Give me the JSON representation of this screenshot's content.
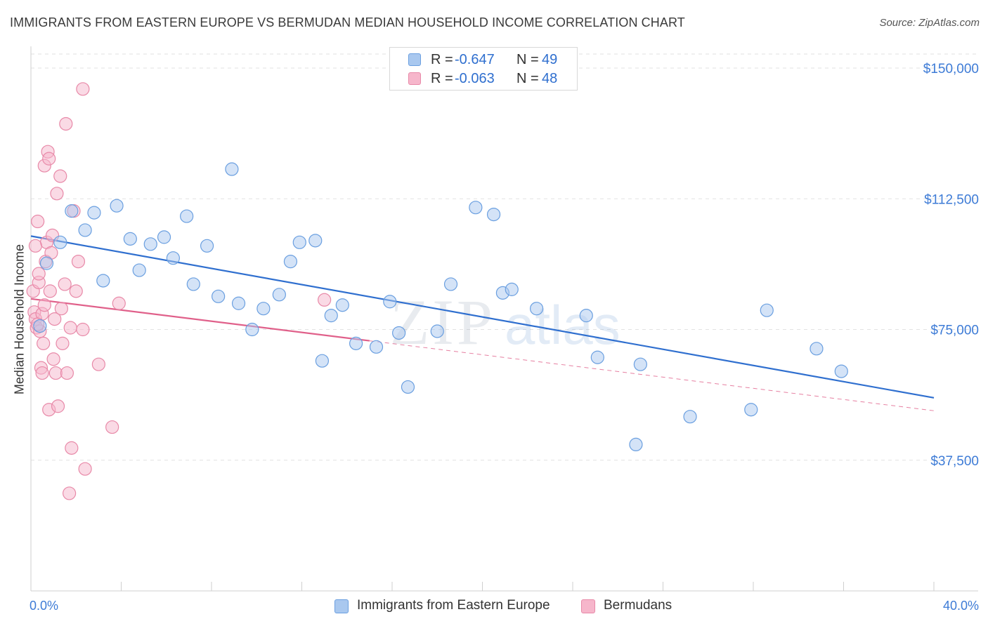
{
  "title": "IMMIGRANTS FROM EASTERN EUROPE VS BERMUDAN MEDIAN HOUSEHOLD INCOME CORRELATION CHART",
  "source": "Source: ZipAtlas.com",
  "watermark": {
    "zip": "ZIP",
    "atlas": "atlas"
  },
  "legend_top": {
    "rows": [
      {
        "r_label": "R =",
        "r_value": "-0.647",
        "n_label": "N =",
        "n_value": "49",
        "color": "#a9c8ef"
      },
      {
        "r_label": "R =",
        "r_value": "-0.063",
        "n_label": "N =",
        "n_value": "48",
        "color": "#f6b6cb"
      }
    ]
  },
  "legend_bottom": [
    {
      "label": "Immigrants from Eastern Europe",
      "color": "#a9c8ef"
    },
    {
      "label": "Bermudans",
      "color": "#f6b6cb"
    }
  ],
  "chart_data": {
    "type": "scatter",
    "title": "IMMIGRANTS FROM EASTERN EUROPE VS BERMUDAN MEDIAN HOUSEHOLD INCOME CORRELATION CHART",
    "xlabel": "",
    "ylabel": "Median Household Income",
    "xlim": [
      0,
      40
    ],
    "ylim": [
      0,
      157000
    ],
    "x_tick_labels": {
      "left": "0.0%",
      "right": "40.0%"
    },
    "y_ticks": [
      {
        "value": 37500,
        "label": "$37,500"
      },
      {
        "value": 75000,
        "label": "$75,000"
      },
      {
        "value": 112500,
        "label": "$112,500"
      },
      {
        "value": 150000,
        "label": "$150,000"
      }
    ],
    "grid": true,
    "legend_position": "top-center",
    "series": [
      {
        "name": "Immigrants from Eastern Europe",
        "color": "#a9c8ef",
        "stroke": "#6a9fe0",
        "trend": {
          "x": [
            0,
            40
          ],
          "y": [
            101800,
            55400
          ],
          "color": "#2f6fcf",
          "dashed_from_x": null
        },
        "points": [
          [
            0.4,
            76000
          ],
          [
            0.7,
            94000
          ],
          [
            1.3,
            100000
          ],
          [
            1.8,
            109000
          ],
          [
            2.4,
            103500
          ],
          [
            2.8,
            108500
          ],
          [
            3.2,
            89000
          ],
          [
            3.8,
            110500
          ],
          [
            4.4,
            101000
          ],
          [
            4.8,
            92000
          ],
          [
            5.3,
            99500
          ],
          [
            5.9,
            101500
          ],
          [
            6.3,
            95500
          ],
          [
            6.9,
            107500
          ],
          [
            7.2,
            88000
          ],
          [
            7.8,
            99000
          ],
          [
            8.3,
            84500
          ],
          [
            8.9,
            121000
          ],
          [
            9.2,
            82500
          ],
          [
            9.8,
            75000
          ],
          [
            10.3,
            81000
          ],
          [
            11.0,
            85000
          ],
          [
            11.5,
            94500
          ],
          [
            11.9,
            100000
          ],
          [
            12.6,
            100500
          ],
          [
            12.9,
            66000
          ],
          [
            13.3,
            79000
          ],
          [
            13.8,
            82000
          ],
          [
            14.4,
            71000
          ],
          [
            15.3,
            70000
          ],
          [
            15.9,
            83000
          ],
          [
            16.3,
            74000
          ],
          [
            16.7,
            58500
          ],
          [
            18.0,
            74500
          ],
          [
            18.6,
            88000
          ],
          [
            19.7,
            110000
          ],
          [
            20.5,
            108000
          ],
          [
            20.9,
            85500
          ],
          [
            21.3,
            86500
          ],
          [
            22.4,
            81000
          ],
          [
            24.6,
            79000
          ],
          [
            25.1,
            67000
          ],
          [
            27.0,
            65000
          ],
          [
            26.8,
            42000
          ],
          [
            29.2,
            50000
          ],
          [
            31.9,
            52000
          ],
          [
            32.6,
            80500
          ],
          [
            34.8,
            69500
          ],
          [
            35.9,
            63000
          ]
        ]
      },
      {
        "name": "Bermudans",
        "color": "#f6b6cb",
        "stroke": "#e889a8",
        "trend": {
          "x": [
            0,
            40
          ],
          "y": [
            83800,
            51700
          ],
          "color": "#e0608a",
          "dashed_from_x": 15
        },
        "points": [
          [
            0.1,
            86000
          ],
          [
            0.15,
            80000
          ],
          [
            0.2,
            78000
          ],
          [
            0.25,
            75500
          ],
          [
            0.3,
            106000
          ],
          [
            0.35,
            88500
          ],
          [
            0.4,
            74500
          ],
          [
            0.45,
            64000
          ],
          [
            0.5,
            62500
          ],
          [
            0.5,
            79500
          ],
          [
            0.55,
            71000
          ],
          [
            0.6,
            122000
          ],
          [
            0.65,
            94500
          ],
          [
            0.7,
            100000
          ],
          [
            0.75,
            126000
          ],
          [
            0.8,
            124000
          ],
          [
            0.8,
            52000
          ],
          [
            0.85,
            86000
          ],
          [
            0.9,
            97000
          ],
          [
            0.95,
            102000
          ],
          [
            1.0,
            66500
          ],
          [
            1.05,
            78000
          ],
          [
            1.1,
            62500
          ],
          [
            1.15,
            114000
          ],
          [
            1.2,
            53000
          ],
          [
            1.3,
            119000
          ],
          [
            1.35,
            81000
          ],
          [
            1.4,
            71000
          ],
          [
            1.5,
            88000
          ],
          [
            1.55,
            134000
          ],
          [
            1.6,
            62500
          ],
          [
            1.7,
            28000
          ],
          [
            1.75,
            75500
          ],
          [
            1.8,
            41000
          ],
          [
            1.9,
            109000
          ],
          [
            2.0,
            86000
          ],
          [
            2.1,
            94500
          ],
          [
            2.3,
            144000
          ],
          [
            2.4,
            35000
          ],
          [
            2.3,
            75000
          ],
          [
            0.3,
            76500
          ],
          [
            0.6,
            82000
          ],
          [
            0.35,
            91000
          ],
          [
            0.2,
            99000
          ],
          [
            3.0,
            65000
          ],
          [
            3.6,
            47000
          ],
          [
            3.9,
            82500
          ],
          [
            13.0,
            83500
          ]
        ]
      }
    ]
  }
}
